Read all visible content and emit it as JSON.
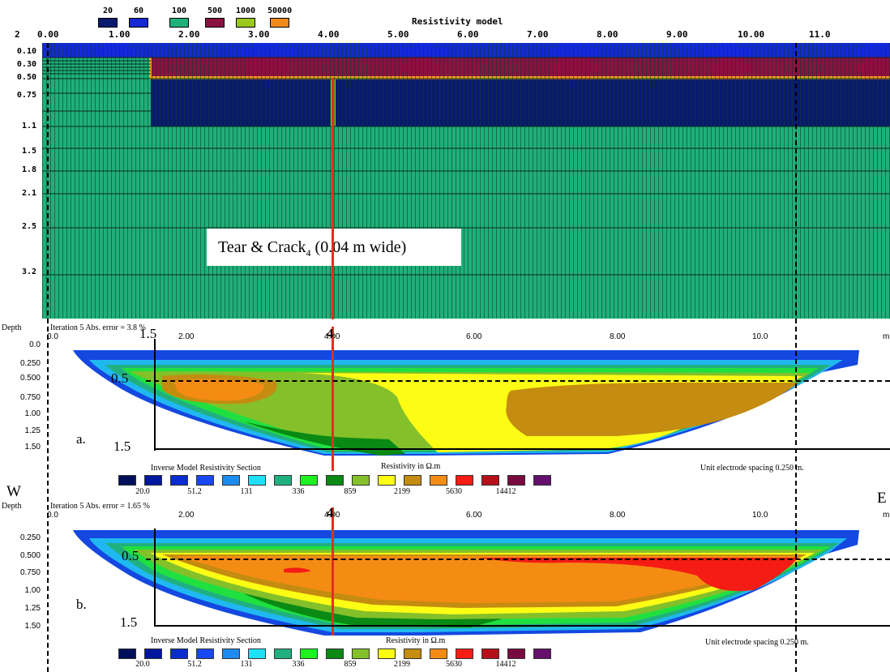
{
  "model": {
    "title": "Resistivity model",
    "legend": [
      {
        "value": "20",
        "color": "#0a1a6e"
      },
      {
        "value": "60",
        "color": "#1428d4"
      },
      {
        "value": "100",
        "color": "#1fb07a"
      },
      {
        "value": "500",
        "color": "#8a1240"
      },
      {
        "value": "1000",
        "color": "#9ac81c"
      },
      {
        "value": "50000",
        "color": "#f08a1c"
      }
    ],
    "x_ticks": [
      "0.00",
      "1.00",
      "2.00",
      "3.00",
      "4.00",
      "5.00",
      "6.00",
      "7.00",
      "8.00",
      "9.00",
      "10.00",
      "11.0"
    ],
    "x_axis_start": "2",
    "y_ticks": [
      "0.10",
      "0.30",
      "0.50",
      "0.75",
      "1.1",
      "1.5",
      "1.8",
      "2.1",
      "2.5",
      "3.2"
    ],
    "crack_label": "Tear & Crack",
    "crack_sub": "4",
    "crack_width": "(0.04 m wide)"
  },
  "sections": [
    {
      "depth_label": "Depth",
      "iteration": "Iteration 5 Abs. error = 3.8 %",
      "x_ticks": [
        "0.0",
        "2.00",
        "4.00",
        "6.00",
        "8.00",
        "10.0",
        "m"
      ],
      "y_ticks": [
        "0.0",
        "0.250",
        "0.500",
        "0.750",
        "1.00",
        "1.25",
        "1.50"
      ],
      "depth_marker_top": "1.5",
      "depth_marker_mid": "0.5",
      "depth_marker_bottom": "1.5",
      "crack_number": "4",
      "tag": "a.",
      "scale_title": "Inverse Model Resistivity Section",
      "resistivity_label": "Resistivity in Ω.m",
      "spacing": "Unit electrode spacing 0.250 m."
    },
    {
      "depth_label": "Depth",
      "iteration": "Iteration 5 Abs. error = 1.65 %",
      "x_ticks": [
        "0.0",
        "2.00",
        "4.00",
        "6.00",
        "8.00",
        "10.0",
        "m"
      ],
      "y_ticks": [
        "0.250",
        "0.500",
        "0.750",
        "1.00",
        "1.25",
        "1.50"
      ],
      "depth_marker_mid": "0.5",
      "depth_marker_bottom": "1.5",
      "crack_number": "4",
      "tag": "b.",
      "scale_title": "Inverse Model Resistivity Section",
      "resistivity_label": "Resistivity in Ω.m",
      "spacing": "Unit electrode spacing 0.250 m."
    }
  ],
  "scale": {
    "colors": [
      "#00105a",
      "#0018a0",
      "#0a2cd0",
      "#1848f0",
      "#1c8cf0",
      "#20e0f8",
      "#20b080",
      "#20f020",
      "#0a8a14",
      "#84c02a",
      "#fcfc14",
      "#c48c10",
      "#f48c14",
      "#f41c14",
      "#b4101c",
      "#780a40",
      "#64106c"
    ],
    "values": [
      "20.0",
      "51.2",
      "131",
      "336",
      "859",
      "2199",
      "5630",
      "14412"
    ]
  },
  "labels": {
    "west": "W",
    "east": "E"
  }
}
